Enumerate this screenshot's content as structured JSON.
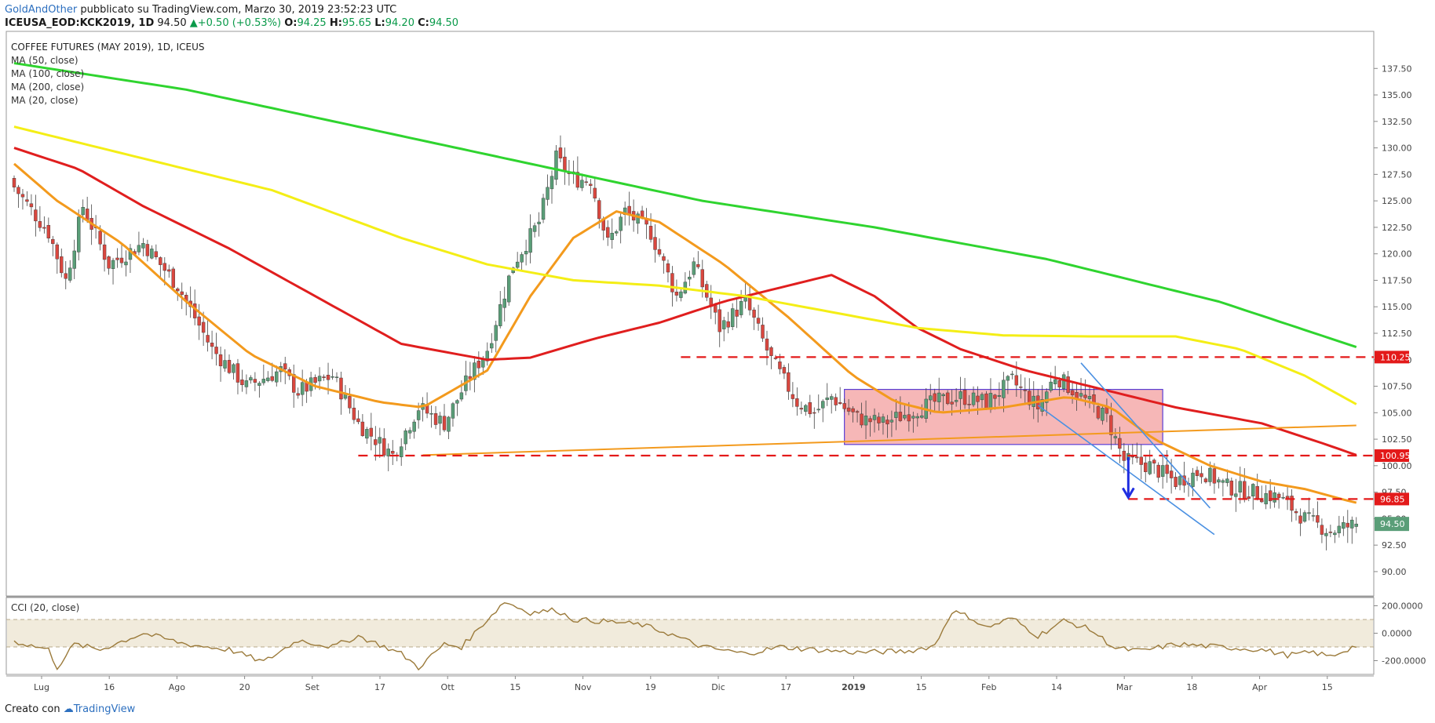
{
  "header": {
    "author": "GoldAndOther",
    "published": "pubblicato su TradingView.com, Marzo 30, 2019 23:52:23 UTC",
    "symbol": "ICEUSA_EOD:KCK2019, 1D",
    "last": "94.50",
    "change_arrow": "▲",
    "change": "+0.50 (+0.53%)",
    "o_label": "O:",
    "o_value": "94.25",
    "h_label": "H:",
    "h_value": "95.65",
    "l_label": "L:",
    "l_value": "94.20",
    "c_label": "C:",
    "c_value": "94.50"
  },
  "footer": {
    "created": "Creato con",
    "brand": "TradingView"
  },
  "colors": {
    "up": "#5a9e78",
    "down": "#d9473f",
    "ma20": "#f39a1d",
    "ma50": "#e01e1e",
    "ma100": "#f4ee16",
    "ma200": "#2fd42f",
    "level": "#e31a1a",
    "channel": "#4a90e2",
    "box_fill": "#f4aaaa",
    "box_border": "#5b3fd6",
    "arrow": "#1f2ee0",
    "cci": "#9b7a3a",
    "cci_band": "#f1ebdc",
    "trendline": "#f39a1d"
  },
  "chart_data": [
    {
      "type": "candlestick",
      "title": "COFFEE FUTURES (MAY 2019), 1D, ICEUS",
      "legend": [
        "MA (50, close)",
        "MA (100, close)",
        "MA (200, close)",
        "MA (20, close)"
      ],
      "x_ticks": [
        "Lug",
        "16",
        "Ago",
        "20",
        "Set",
        "17",
        "Ott",
        "15",
        "Nov",
        "19",
        "Dic",
        "17",
        "2019",
        "15",
        "Feb",
        "14",
        "Mar",
        "18",
        "Apr",
        "15"
      ],
      "y_ticks": [
        "137.50",
        "135.00",
        "132.50",
        "130.00",
        "127.50",
        "125.00",
        "122.50",
        "120.00",
        "117.50",
        "115.00",
        "112.50",
        "110.00",
        "107.50",
        "105.00",
        "102.50",
        "100.00",
        "97.50",
        "95.00",
        "92.50",
        "90.00"
      ],
      "ylim": [
        87.7,
        141.0
      ],
      "last_price_label": "94.50",
      "levels": [
        {
          "label": "110.25",
          "value": 110.25
        },
        {
          "label": "100.95",
          "value": 100.95
        },
        {
          "label": "96.85",
          "value": 96.85
        }
      ],
      "close_anchors": [
        [
          0,
          126.3
        ],
        [
          8,
          122.0
        ],
        [
          12,
          117.5
        ],
        [
          16,
          124.5
        ],
        [
          22,
          119.0
        ],
        [
          30,
          121.0
        ],
        [
          38,
          117.0
        ],
        [
          46,
          111.0
        ],
        [
          54,
          107.5
        ],
        [
          62,
          109.0
        ],
        [
          66,
          107.0
        ],
        [
          74,
          108.5
        ],
        [
          80,
          104.0
        ],
        [
          88,
          101.0
        ],
        [
          94,
          105.5
        ],
        [
          100,
          104.0
        ],
        [
          106,
          108.5
        ],
        [
          110,
          111.0
        ],
        [
          116,
          119.0
        ],
        [
          122,
          123.0
        ],
        [
          126,
          129.0
        ],
        [
          130,
          127.0
        ],
        [
          134,
          127.0
        ],
        [
          138,
          121.0
        ],
        [
          142,
          124.0
        ],
        [
          148,
          122.0
        ],
        [
          154,
          116.0
        ],
        [
          158,
          119.0
        ],
        [
          164,
          113.0
        ],
        [
          170,
          115.5
        ],
        [
          176,
          110.0
        ],
        [
          182,
          106.0
        ],
        [
          186,
          105.0
        ],
        [
          190,
          106.5
        ],
        [
          196,
          104.5
        ],
        [
          202,
          104.0
        ],
        [
          208,
          105.0
        ],
        [
          214,
          106.0
        ],
        [
          220,
          106.5
        ],
        [
          226,
          106.0
        ],
        [
          232,
          108.0
        ],
        [
          238,
          105.5
        ],
        [
          242,
          108.5
        ],
        [
          248,
          106.5
        ],
        [
          254,
          104.5
        ],
        [
          258,
          100.5
        ],
        [
          264,
          100.0
        ],
        [
          270,
          98.5
        ],
        [
          276,
          99.5
        ],
        [
          282,
          98.0
        ],
        [
          288,
          97.5
        ],
        [
          294,
          97.0
        ],
        [
          300,
          95.0
        ],
        [
          306,
          93.8
        ],
        [
          312,
          94.5
        ]
      ],
      "moving_averages": [
        {
          "name": "MA (20, close)",
          "anchors": [
            [
              0,
              128.5
            ],
            [
              10,
              125.0
            ],
            [
              25,
              121.0
            ],
            [
              40,
              115.5
            ],
            [
              55,
              110.5
            ],
            [
              70,
              107.5
            ],
            [
              85,
              106.0
            ],
            [
              95,
              105.5
            ],
            [
              110,
              109.0
            ],
            [
              120,
              116.0
            ],
            [
              130,
              121.5
            ],
            [
              140,
              124.0
            ],
            [
              150,
              123.0
            ],
            [
              165,
              119.0
            ],
            [
              180,
              114.0
            ],
            [
              195,
              108.5
            ],
            [
              205,
              106.0
            ],
            [
              215,
              105.0
            ],
            [
              230,
              105.5
            ],
            [
              245,
              106.5
            ],
            [
              255,
              105.5
            ],
            [
              265,
              102.5
            ],
            [
              278,
              100.0
            ],
            [
              290,
              98.5
            ],
            [
              300,
              97.8
            ],
            [
              309,
              96.8
            ],
            [
              312,
              96.5
            ]
          ]
        },
        {
          "name": "MA (50, close)",
          "anchors": [
            [
              0,
              130.0
            ],
            [
              15,
              128.0
            ],
            [
              30,
              124.5
            ],
            [
              50,
              120.5
            ],
            [
              70,
              116.0
            ],
            [
              90,
              111.5
            ],
            [
              110,
              110.0
            ],
            [
              120,
              110.2
            ],
            [
              135,
              112.0
            ],
            [
              150,
              113.5
            ],
            [
              165,
              115.5
            ],
            [
              180,
              117.0
            ],
            [
              190,
              118.0
            ],
            [
              200,
              116.0
            ],
            [
              210,
              113.0
            ],
            [
              220,
              111.0
            ],
            [
              235,
              109.0
            ],
            [
              250,
              107.5
            ],
            [
              270,
              105.5
            ],
            [
              290,
              104.0
            ],
            [
              305,
              102.0
            ],
            [
              312,
              101.0
            ]
          ]
        },
        {
          "name": "MA (100, close)",
          "anchors": [
            [
              0,
              132.0
            ],
            [
              30,
              129.0
            ],
            [
              60,
              126.0
            ],
            [
              90,
              121.5
            ],
            [
              110,
              119.0
            ],
            [
              130,
              117.5
            ],
            [
              150,
              117.0
            ],
            [
              170,
              116.0
            ],
            [
              190,
              114.5
            ],
            [
              210,
              113.0
            ],
            [
              230,
              112.3
            ],
            [
              250,
              112.2
            ],
            [
              270,
              112.2
            ],
            [
              285,
              111.0
            ],
            [
              300,
              108.5
            ],
            [
              312,
              105.8
            ]
          ]
        },
        {
          "name": "MA (200, close)",
          "anchors": [
            [
              0,
              138.0
            ],
            [
              40,
              135.5
            ],
            [
              80,
              132.0
            ],
            [
              120,
              128.5
            ],
            [
              160,
              125.0
            ],
            [
              200,
              122.5
            ],
            [
              240,
              119.5
            ],
            [
              280,
              115.5
            ],
            [
              312,
              111.2
            ]
          ]
        }
      ],
      "trendline": {
        "from": [
          95,
          101.0
        ],
        "to": [
          312,
          103.8
        ]
      },
      "consolidation_box": {
        "from": [
          193,
          107.2
        ],
        "to": [
          267,
          102.0
        ]
      },
      "channel": [
        {
          "from": [
            248,
            109.7
          ],
          "to": [
            278,
            96.0
          ]
        },
        {
          "from": [
            238,
            105.7
          ],
          "to": [
            279,
            93.5
          ]
        }
      ],
      "arrow": {
        "x": 259,
        "from": 100.8,
        "to": 97.0
      }
    },
    {
      "type": "line",
      "title": "CCI (20, close)",
      "y_ticks": [
        "200.0000",
        "0.0000",
        "-200.0000"
      ],
      "ylim": [
        -300,
        260
      ],
      "band": [
        -100,
        100
      ],
      "anchors": [
        [
          0,
          -60
        ],
        [
          8,
          -120
        ],
        [
          10,
          -250
        ],
        [
          14,
          -80
        ],
        [
          20,
          -120
        ],
        [
          30,
          0
        ],
        [
          40,
          -80
        ],
        [
          50,
          -120
        ],
        [
          58,
          -210
        ],
        [
          66,
          -50
        ],
        [
          74,
          -100
        ],
        [
          80,
          -20
        ],
        [
          90,
          -150
        ],
        [
          94,
          -250
        ],
        [
          100,
          -80
        ],
        [
          104,
          -100
        ],
        [
          110,
          100
        ],
        [
          114,
          230
        ],
        [
          120,
          150
        ],
        [
          126,
          170
        ],
        [
          130,
          100
        ],
        [
          140,
          80
        ],
        [
          146,
          60
        ],
        [
          152,
          0
        ],
        [
          160,
          -100
        ],
        [
          170,
          -150
        ],
        [
          178,
          -100
        ],
        [
          186,
          -120
        ],
        [
          196,
          -140
        ],
        [
          208,
          -130
        ],
        [
          214,
          -90
        ],
        [
          218,
          160
        ],
        [
          222,
          120
        ],
        [
          226,
          40
        ],
        [
          232,
          110
        ],
        [
          238,
          -20
        ],
        [
          244,
          90
        ],
        [
          250,
          30
        ],
        [
          256,
          -110
        ],
        [
          262,
          -130
        ],
        [
          270,
          -80
        ],
        [
          280,
          -100
        ],
        [
          290,
          -120
        ],
        [
          296,
          -160
        ],
        [
          302,
          -140
        ],
        [
          306,
          -170
        ],
        [
          312,
          -90
        ]
      ]
    }
  ]
}
